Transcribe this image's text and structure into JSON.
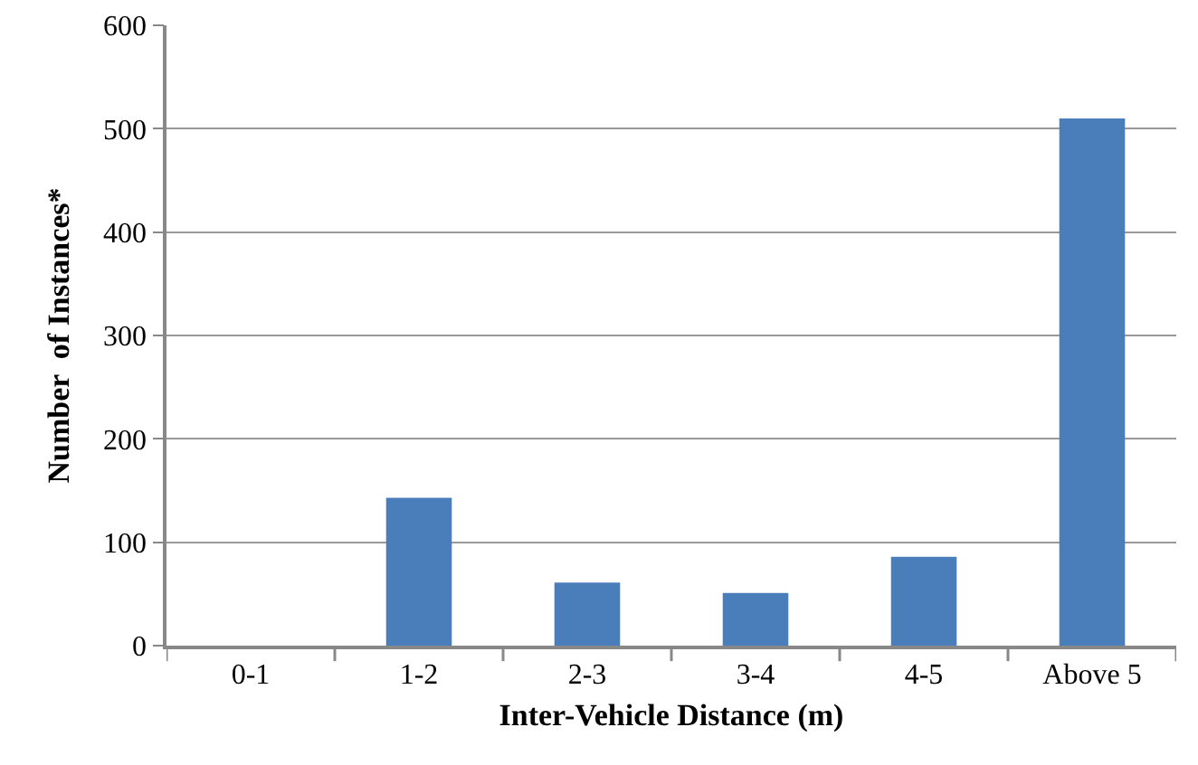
{
  "chart_data": {
    "type": "bar",
    "xlabel": "Inter-Vehicle Distance (m)",
    "ylabel": "Number  of Instances*",
    "categories": [
      "0-1",
      "1-2",
      "2-3",
      "3-4",
      "4-5",
      "Above 5"
    ],
    "values": [
      0,
      143,
      61,
      51,
      86,
      510
    ],
    "color": "#4a7ebb",
    "ylim": [
      0,
      600
    ],
    "yticks": [
      0,
      100,
      200,
      300,
      400,
      500,
      600
    ],
    "grid": "y"
  }
}
